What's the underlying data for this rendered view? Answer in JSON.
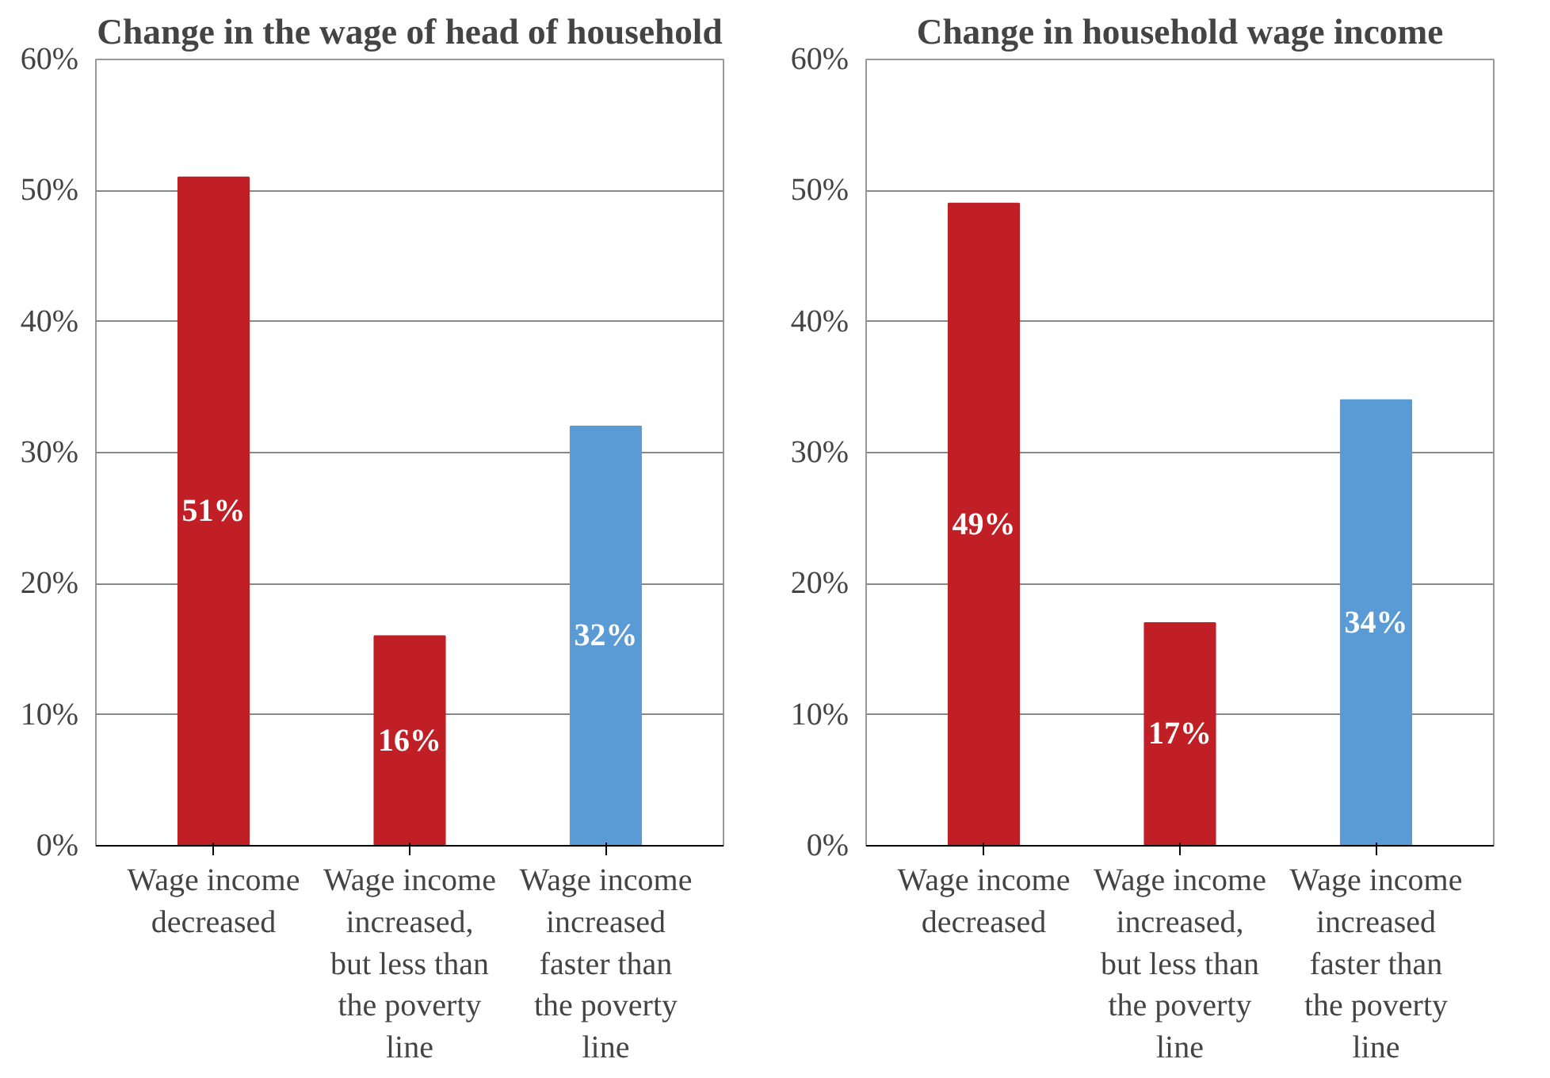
{
  "chart_data": [
    {
      "type": "bar",
      "title": "Change in the wage of head of household",
      "categories": [
        "Wage income decreased",
        "Wage income increased, but less than the poverty line",
        "Wage income increased faster than the poverty line"
      ],
      "values": [
        51,
        16,
        32
      ],
      "colors": [
        "#c01f25",
        "#c01f25",
        "#5b9bd5"
      ],
      "data_labels": true,
      "value_labels": [
        "51%",
        "16%",
        "32%"
      ],
      "ylim": [
        0,
        60
      ],
      "yticks": [
        {
          "value": 0,
          "label": "0%"
        },
        {
          "value": 10,
          "label": "10%"
        },
        {
          "value": 20,
          "label": "20%"
        },
        {
          "value": 30,
          "label": "30%"
        },
        {
          "value": 40,
          "label": "40%"
        },
        {
          "value": 50,
          "label": "50%"
        },
        {
          "value": 60,
          "label": "60%"
        }
      ],
      "grid": "y"
    },
    {
      "type": "bar",
      "title": "Change in household wage income",
      "categories": [
        "Wage income decreased",
        "Wage income increased, but less than the poverty line",
        "Wage income increased faster than the poverty line"
      ],
      "values": [
        49,
        17,
        34
      ],
      "colors": [
        "#c01f25",
        "#c01f25",
        "#5b9bd5"
      ],
      "data_labels": true,
      "value_labels": [
        "49%",
        "17%",
        "34%"
      ],
      "ylim": [
        0,
        60
      ],
      "yticks": [
        {
          "value": 0,
          "label": "0%"
        },
        {
          "value": 10,
          "label": "10%"
        },
        {
          "value": 20,
          "label": "20%"
        },
        {
          "value": 30,
          "label": "30%"
        },
        {
          "value": 40,
          "label": "40%"
        },
        {
          "value": 50,
          "label": "50%"
        },
        {
          "value": 60,
          "label": "60%"
        }
      ],
      "grid": "y"
    }
  ]
}
